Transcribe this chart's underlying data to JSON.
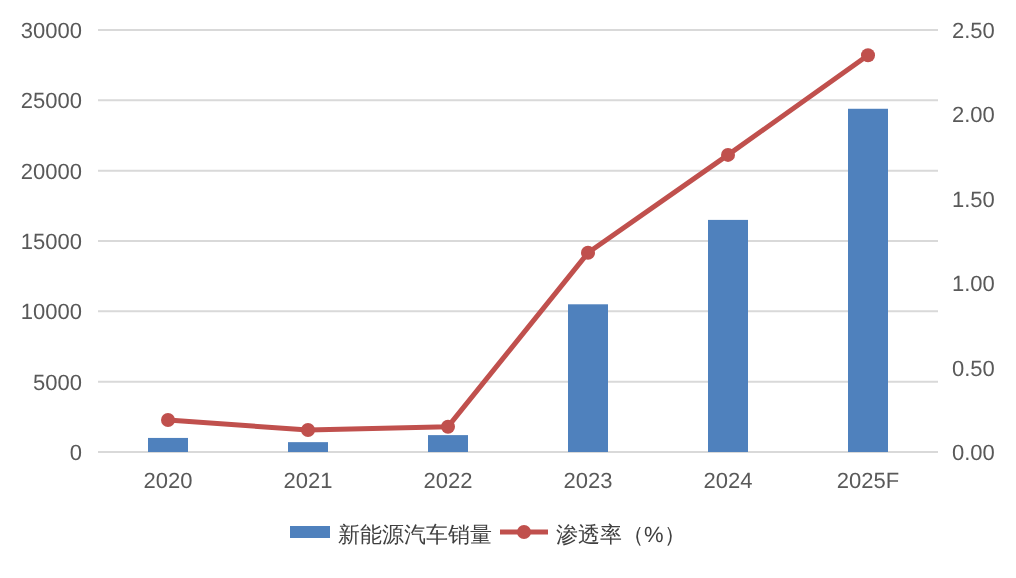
{
  "chart_data": {
    "type": "bar",
    "categories": [
      "2020",
      "2021",
      "2022",
      "2023",
      "2024",
      "2025F"
    ],
    "series": [
      {
        "name": "新能源汽车销量",
        "color": "#4f81bd",
        "values": [
          1000,
          700,
          1200,
          10500,
          16500,
          24400
        ]
      },
      {
        "name": "渗透率（%）",
        "type": "line",
        "axis": "y2",
        "color": "#c0504d",
        "marker": "circle",
        "values": [
          0.19,
          0.13,
          0.15,
          1.18,
          1.76,
          2.35
        ]
      }
    ],
    "ylim": [
      0,
      30000
    ],
    "yticks": [
      0,
      5000,
      10000,
      15000,
      20000,
      25000,
      30000
    ],
    "y2lim": [
      0,
      2.5
    ],
    "y2ticks": [
      {
        "value": 0,
        "label": "0.00"
      },
      {
        "value": 0.5,
        "label": "0.50"
      },
      {
        "value": 1,
        "label": "1.00"
      },
      {
        "value": 1.5,
        "label": "1.50"
      },
      {
        "value": 2,
        "label": "2.00"
      },
      {
        "value": 2.5,
        "label": "2.50"
      }
    ],
    "grid": "y",
    "legend": "bottom"
  }
}
